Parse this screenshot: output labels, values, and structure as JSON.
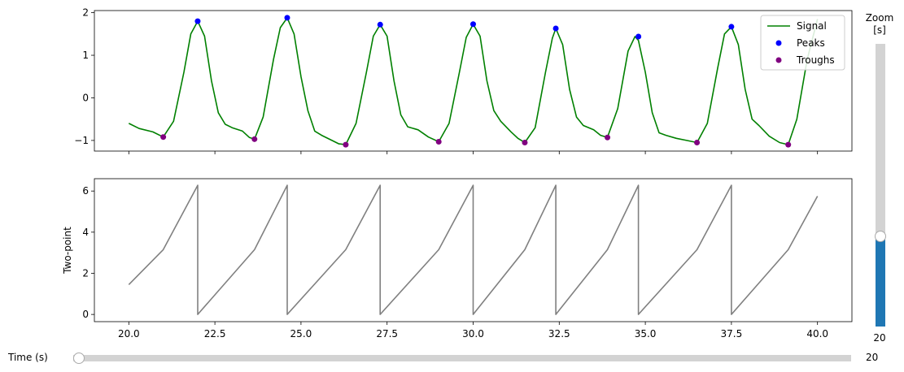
{
  "chart_data": [
    {
      "type": "line",
      "title": "",
      "xlabel": "",
      "ylabel": "",
      "xlim": [
        19.0,
        41.0
      ],
      "ylim": [
        -1.25,
        2.05
      ],
      "xticks": [
        20.0,
        22.5,
        25.0,
        27.5,
        30.0,
        32.5,
        35.0,
        37.5,
        40.0
      ],
      "yticks": [
        -1,
        0,
        1,
        2
      ],
      "legend": {
        "position": "upper right",
        "entries": [
          "Signal",
          "Peaks",
          "Troughs"
        ]
      },
      "series": [
        {
          "name": "Signal",
          "color": "#008000",
          "style": "line",
          "x": [
            20.0,
            20.3,
            20.7,
            21.0,
            21.3,
            21.6,
            21.8,
            22.0,
            22.2,
            22.4,
            22.6,
            22.8,
            23.0,
            23.3,
            23.5,
            23.65,
            23.9,
            24.2,
            24.4,
            24.6,
            24.8,
            25.0,
            25.2,
            25.4,
            25.6,
            25.9,
            26.1,
            26.3,
            26.6,
            26.9,
            27.1,
            27.3,
            27.5,
            27.7,
            27.9,
            28.1,
            28.4,
            28.7,
            29.0,
            29.3,
            29.6,
            29.8,
            30.0,
            30.2,
            30.4,
            30.6,
            30.8,
            31.1,
            31.3,
            31.5,
            31.8,
            32.1,
            32.3,
            32.4,
            32.6,
            32.8,
            33.0,
            33.2,
            33.5,
            33.7,
            33.9,
            34.2,
            34.5,
            34.7,
            34.8,
            35.0,
            35.2,
            35.4,
            35.6,
            35.9,
            36.2,
            36.5,
            36.8,
            37.1,
            37.3,
            37.5,
            37.7,
            37.9,
            38.1,
            38.3,
            38.6,
            38.9,
            39.15,
            39.4,
            39.7,
            40.0
          ],
          "y": [
            -0.6,
            -0.72,
            -0.8,
            -0.92,
            -0.55,
            0.6,
            1.5,
            1.8,
            1.45,
            0.4,
            -0.35,
            -0.62,
            -0.7,
            -0.78,
            -0.93,
            -0.97,
            -0.45,
            0.9,
            1.65,
            1.88,
            1.5,
            0.5,
            -0.3,
            -0.78,
            -0.88,
            -1.0,
            -1.08,
            -1.1,
            -0.6,
            0.6,
            1.45,
            1.72,
            1.45,
            0.4,
            -0.4,
            -0.68,
            -0.75,
            -0.92,
            -1.03,
            -0.6,
            0.6,
            1.42,
            1.73,
            1.45,
            0.4,
            -0.3,
            -0.55,
            -0.8,
            -0.95,
            -1.05,
            -0.7,
            0.6,
            1.4,
            1.63,
            1.25,
            0.2,
            -0.45,
            -0.65,
            -0.75,
            -0.88,
            -0.93,
            -0.25,
            1.1,
            1.44,
            1.35,
            0.6,
            -0.35,
            -0.82,
            -0.88,
            -0.95,
            -1.0,
            -1.05,
            -0.6,
            0.7,
            1.5,
            1.67,
            1.25,
            0.2,
            -0.5,
            -0.65,
            -0.9,
            -1.05,
            -1.1,
            -0.5,
            0.9,
            1.85
          ]
        },
        {
          "name": "Peaks",
          "color": "#0000ff",
          "style": "markers",
          "x": [
            22.0,
            24.6,
            27.3,
            30.0,
            32.4,
            34.8,
            37.5
          ],
          "y": [
            1.8,
            1.88,
            1.72,
            1.73,
            1.63,
            1.44,
            1.67
          ]
        },
        {
          "name": "Troughs",
          "color": "#800080",
          "style": "markers",
          "x": [
            21.0,
            23.65,
            26.3,
            29.0,
            31.5,
            33.9,
            36.5,
            39.15
          ],
          "y": [
            -0.92,
            -0.97,
            -1.1,
            -1.03,
            -1.05,
            -0.93,
            -1.05,
            -1.1
          ]
        }
      ]
    },
    {
      "type": "line",
      "title": "",
      "xlabel": "",
      "ylabel": "Two-point",
      "xlim": [
        19.0,
        41.0
      ],
      "ylim": [
        -0.35,
        6.6
      ],
      "xticks": [
        20.0,
        22.5,
        25.0,
        27.5,
        30.0,
        32.5,
        35.0,
        37.5,
        40.0
      ],
      "xticklabels": [
        "20.0",
        "22.5",
        "25.0",
        "27.5",
        "30.0",
        "32.5",
        "35.0",
        "37.5",
        "40.0"
      ],
      "yticks": [
        0,
        2,
        4,
        6
      ],
      "series": [
        {
          "color": "#808080",
          "style": "line",
          "x": [
            20.0,
            21.0,
            22.0,
            22.0,
            23.65,
            24.6,
            24.6,
            26.3,
            27.3,
            27.3,
            29.0,
            30.0,
            30.0,
            31.5,
            32.4,
            32.4,
            33.9,
            34.8,
            34.8,
            36.5,
            37.5,
            37.5,
            39.15,
            40.0
          ],
          "y": [
            1.45,
            3.15,
            6.28,
            0.0,
            3.15,
            6.28,
            0.0,
            3.15,
            6.28,
            0.0,
            3.15,
            6.28,
            0.0,
            3.15,
            6.28,
            0.0,
            3.15,
            6.28,
            0.0,
            3.15,
            6.28,
            0.0,
            3.15,
            5.75
          ]
        }
      ]
    }
  ],
  "controls": {
    "zoom_label": "Zoom\n[s]",
    "zoom_value": "20",
    "zoom_fraction": 0.32,
    "time_label": "Time (s)",
    "time_value": "20",
    "time_fraction": 0.0
  }
}
